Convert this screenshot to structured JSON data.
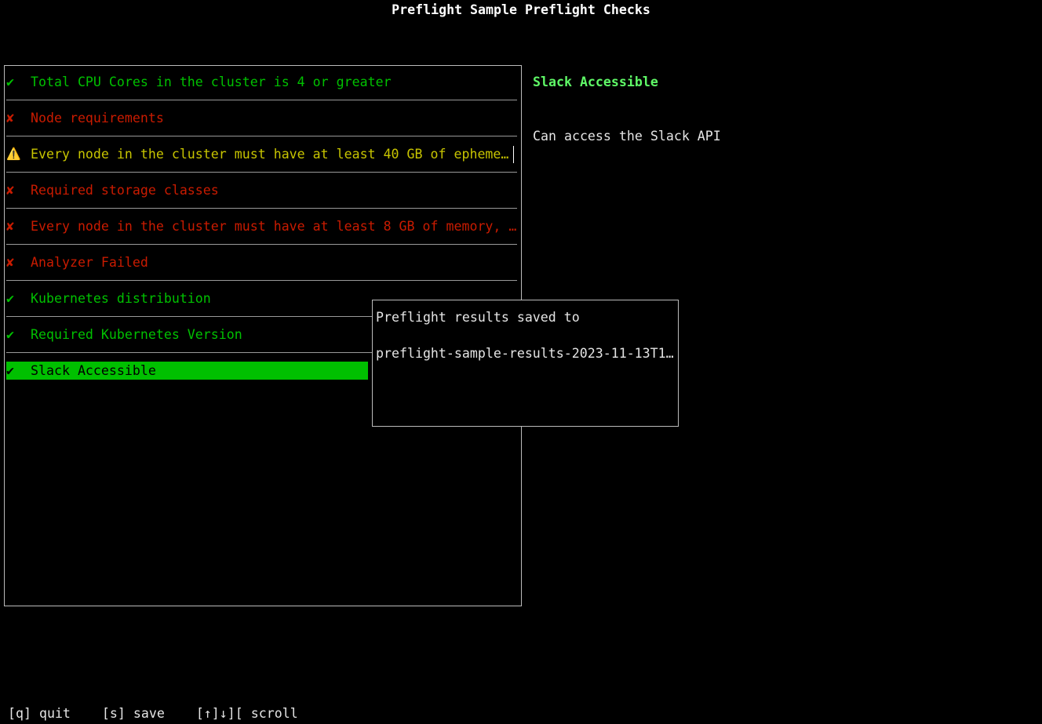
{
  "title": "Preflight Sample Preflight Checks",
  "colors": {
    "pass": "#00c000",
    "fail": "#c91b00",
    "warn": "#c7c400",
    "selected_bg": "#00c000",
    "detail_title": "#5ff967"
  },
  "checks": [
    {
      "status": "pass",
      "icon": "✔",
      "label": "Total CPU Cores in the cluster is 4 or greater"
    },
    {
      "status": "fail",
      "icon": "✘",
      "label": "Node requirements"
    },
    {
      "status": "warn",
      "icon": "⚠️",
      "label": "Every node in the cluster must have at least 40 GB of epheme…"
    },
    {
      "status": "fail",
      "icon": "✘",
      "label": "Required storage classes"
    },
    {
      "status": "fail",
      "icon": "✘",
      "label": "Every node in the cluster must have at least 8 GB of memory, …"
    },
    {
      "status": "fail",
      "icon": "✘",
      "label": "Analyzer Failed"
    },
    {
      "status": "pass",
      "icon": "✔",
      "label": "Kubernetes distribution"
    },
    {
      "status": "pass",
      "icon": "✔",
      "label": "Required Kubernetes Version"
    },
    {
      "status": "pass",
      "icon": "✔",
      "label": "Slack Accessible",
      "selected": true
    }
  ],
  "detail": {
    "title": "Slack Accessible",
    "description": "Can access the Slack API"
  },
  "popup": {
    "line1": "Preflight results saved to",
    "line2": "preflight-sample-results-2023-11-13T1…"
  },
  "footer": {
    "quit": "[q] quit",
    "save": "[s] save",
    "scroll": "[↑]↓][ scroll"
  }
}
